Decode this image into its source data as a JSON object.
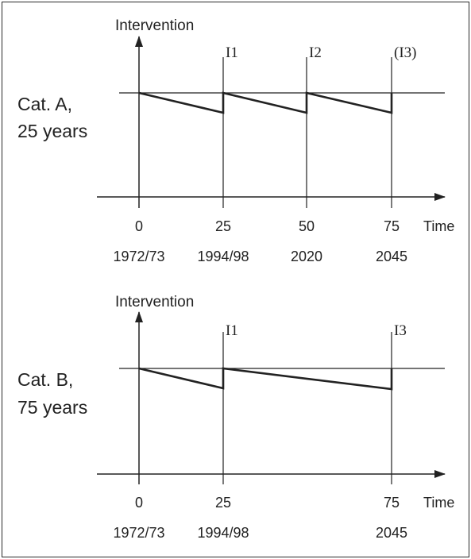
{
  "panels": [
    {
      "id": "a",
      "category_line1": "Cat. A,",
      "category_line2": "25 years",
      "y_axis_label": "Intervention",
      "x_axis_label": "Time",
      "intervention_labels": [
        "I1",
        "I2",
        "(I3)"
      ],
      "tick_values": [
        "0",
        "25",
        "50",
        "75"
      ],
      "tick_years": [
        "1972/73",
        "1994/98",
        "2020",
        "2045"
      ]
    },
    {
      "id": "b",
      "category_line1": "Cat. B,",
      "category_line2": "75 years",
      "y_axis_label": "Intervention",
      "x_axis_label": "Time",
      "intervention_labels": [
        "I1",
        "I3"
      ],
      "tick_values": [
        "0",
        "25",
        "75"
      ],
      "tick_years": [
        "1972/73",
        "1994/98",
        "2045"
      ]
    }
  ],
  "colors": {
    "line": "#222222",
    "frame": "#2a2a2a",
    "background": "#ffffff"
  }
}
